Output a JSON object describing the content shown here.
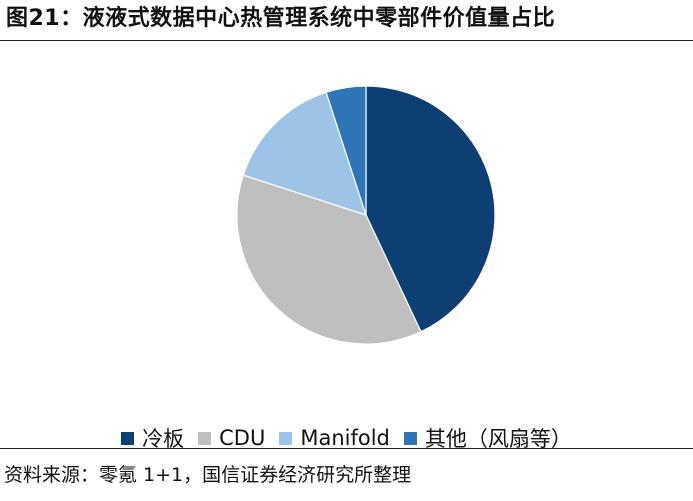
{
  "title": "图21：液液式数据中心热管理系统中零部件价值量占比",
  "source": "资料来源：零氪 1+1，国信证券经济研究所整理",
  "chart_data": {
    "type": "pie",
    "start_angle_deg": 0,
    "direction": "clockwise",
    "legend_position": "bottom",
    "slices": [
      {
        "label": "冷板",
        "value": 43,
        "color": "#0d3f73"
      },
      {
        "label": "CDU",
        "value": 37,
        "color": "#bfbfbf"
      },
      {
        "label": "Manifold",
        "value": 15,
        "color": "#9dc3e6"
      },
      {
        "label": "其他（风扇等）",
        "value": 5,
        "color": "#2e75b6"
      }
    ]
  }
}
